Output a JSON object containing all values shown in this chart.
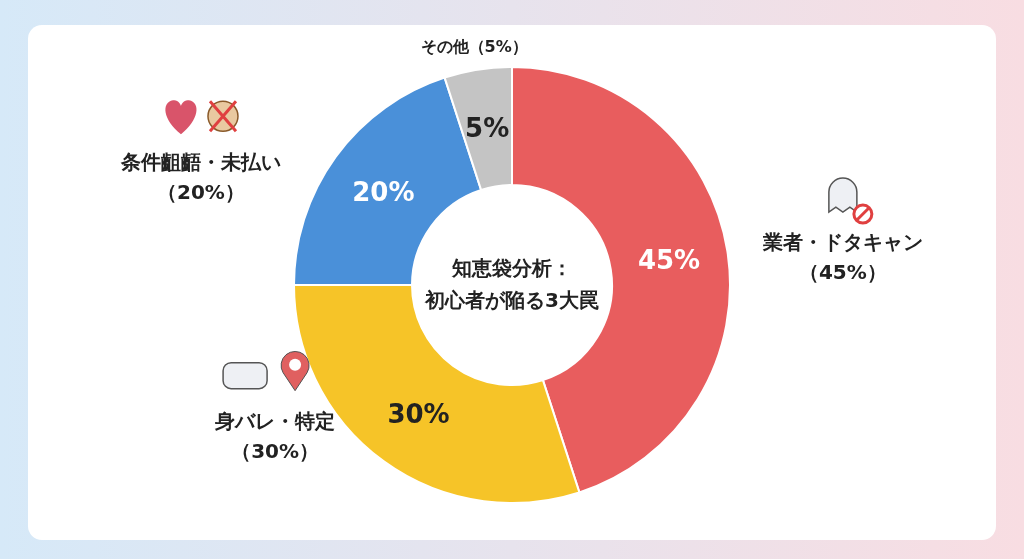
{
  "chart_data": {
    "type": "donut",
    "title": "知恵袋分析：",
    "subtitle": "初心者が陥る3大罠",
    "categories": [
      "業者・ドタキャン",
      "身バレ・特定",
      "条件齟齬・未払い",
      "その他"
    ],
    "values": [
      45,
      30,
      20,
      5
    ],
    "value_labels": [
      "45%",
      "30%",
      "20%",
      "5%"
    ],
    "annotations": [
      "（45%）",
      "（30%）",
      "（20%）",
      "（5%）"
    ],
    "colors": [
      "#e85d5e",
      "#f6c428",
      "#4a90d9",
      "#c4c4c4"
    ]
  }
}
